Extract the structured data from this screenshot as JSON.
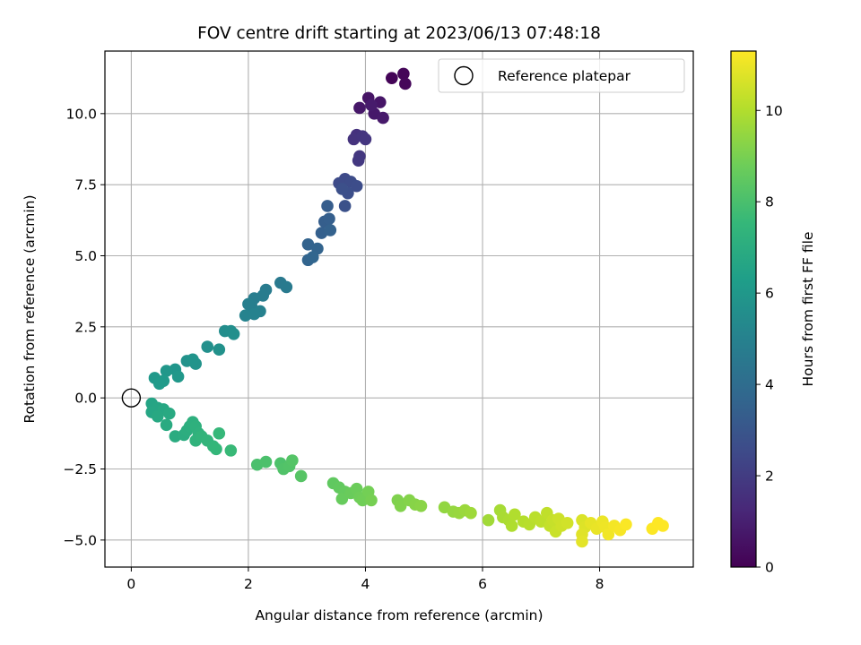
{
  "chart_data": {
    "type": "scatter",
    "title": "FOV centre drift starting at 2023/06/13 07:48:18",
    "xlabel": "Angular distance from reference (arcmin)",
    "ylabel": "Rotation from reference (arcmin)",
    "xlim": [
      -0.45,
      9.6
    ],
    "ylim": [
      -5.95,
      12.2
    ],
    "xticks": [
      0,
      2,
      4,
      6,
      8
    ],
    "xtick_labels": [
      "0",
      "2",
      "4",
      "6",
      "8"
    ],
    "yticks": [
      -5.0,
      -2.5,
      0.0,
      2.5,
      5.0,
      7.5,
      10.0
    ],
    "ytick_labels": [
      "−5.0",
      "−2.5",
      "0.0",
      "2.5",
      "5.0",
      "7.5",
      "10.0"
    ],
    "grid": true,
    "legend": {
      "position": "top-right",
      "entries": [
        "Reference platepar"
      ]
    },
    "reference_point": {
      "label": "Reference platepar",
      "x": 0.0,
      "y": 0.0
    },
    "colorbar": {
      "label": "Hours from first FF file",
      "colormap": "viridis",
      "range": [
        0,
        11.3
      ],
      "ticks": [
        0,
        2,
        4,
        6,
        8,
        10
      ],
      "tick_labels": [
        "0",
        "2",
        "4",
        "6",
        "8",
        "10"
      ]
    },
    "series": [
      {
        "columns": [
          "x",
          "y",
          "hours"
        ],
        "points": [
          [
            4.45,
            11.25,
            0.1
          ],
          [
            4.65,
            11.4,
            0.15
          ],
          [
            4.68,
            11.05,
            0.2
          ],
          [
            4.05,
            10.55,
            0.6
          ],
          [
            4.25,
            10.4,
            0.65
          ],
          [
            3.9,
            10.2,
            0.7
          ],
          [
            4.15,
            10.0,
            0.75
          ],
          [
            4.3,
            9.85,
            0.8
          ],
          [
            4.1,
            10.3,
            0.85
          ],
          [
            3.85,
            9.25,
            1.6
          ],
          [
            3.8,
            9.1,
            1.65
          ],
          [
            3.95,
            9.2,
            1.7
          ],
          [
            4.0,
            9.1,
            1.75
          ],
          [
            3.9,
            8.5,
            1.8
          ],
          [
            3.88,
            8.35,
            1.85
          ],
          [
            3.65,
            7.7,
            2.5
          ],
          [
            3.55,
            7.55,
            2.55
          ],
          [
            3.75,
            7.6,
            2.6
          ],
          [
            3.85,
            7.45,
            2.65
          ],
          [
            3.7,
            7.2,
            2.7
          ],
          [
            3.6,
            7.35,
            2.75
          ],
          [
            3.65,
            6.75,
            2.8
          ],
          [
            3.35,
            6.75,
            3.3
          ],
          [
            3.3,
            6.2,
            3.35
          ],
          [
            3.38,
            6.3,
            3.4
          ],
          [
            3.25,
            5.8,
            3.45
          ],
          [
            3.4,
            5.9,
            3.5
          ],
          [
            3.02,
            5.4,
            3.55
          ],
          [
            3.18,
            5.25,
            3.6
          ],
          [
            3.02,
            4.85,
            3.65
          ],
          [
            3.1,
            4.95,
            3.7
          ],
          [
            2.55,
            4.05,
            4.6
          ],
          [
            2.65,
            3.9,
            4.65
          ],
          [
            2.3,
            3.8,
            4.7
          ],
          [
            2.25,
            3.6,
            4.75
          ],
          [
            2.1,
            3.5,
            4.8
          ],
          [
            2.05,
            3.25,
            4.85
          ],
          [
            2.0,
            3.3,
            4.9
          ],
          [
            2.2,
            3.05,
            4.95
          ],
          [
            2.1,
            2.95,
            5.0
          ],
          [
            1.95,
            2.9,
            5.05
          ],
          [
            1.6,
            2.35,
            5.5
          ],
          [
            1.7,
            2.35,
            5.55
          ],
          [
            1.75,
            2.25,
            5.6
          ],
          [
            1.3,
            1.8,
            5.65
          ],
          [
            1.5,
            1.7,
            5.7
          ],
          [
            0.95,
            1.3,
            5.75
          ],
          [
            1.1,
            1.2,
            5.8
          ],
          [
            1.05,
            1.35,
            5.85
          ],
          [
            0.75,
            1.0,
            5.9
          ],
          [
            0.6,
            0.95,
            5.95
          ],
          [
            0.8,
            0.75,
            6.0
          ],
          [
            0.4,
            0.7,
            6.05
          ],
          [
            0.55,
            0.6,
            6.1
          ],
          [
            0.48,
            0.5,
            6.15
          ],
          [
            0.35,
            -0.2,
            6.6
          ],
          [
            0.45,
            -0.35,
            6.65
          ],
          [
            0.35,
            -0.5,
            6.7
          ],
          [
            0.55,
            -0.4,
            6.75
          ],
          [
            0.45,
            -0.65,
            6.8
          ],
          [
            0.65,
            -0.55,
            6.85
          ],
          [
            0.6,
            -0.95,
            6.9
          ],
          [
            0.75,
            -1.35,
            6.95
          ],
          [
            0.9,
            -1.3,
            7.0
          ],
          [
            0.95,
            -1.15,
            7.05
          ],
          [
            1.0,
            -1.0,
            7.1
          ],
          [
            1.05,
            -0.85,
            7.15
          ],
          [
            1.1,
            -1.0,
            7.2
          ],
          [
            1.15,
            -1.25,
            7.25
          ],
          [
            1.1,
            -1.5,
            7.3
          ],
          [
            1.2,
            -1.35,
            7.35
          ],
          [
            1.3,
            -1.5,
            7.4
          ],
          [
            1.4,
            -1.7,
            7.45
          ],
          [
            1.45,
            -1.8,
            7.5
          ],
          [
            1.5,
            -1.25,
            7.55
          ],
          [
            1.7,
            -1.85,
            7.6
          ],
          [
            2.15,
            -2.35,
            8.0
          ],
          [
            2.3,
            -2.25,
            8.05
          ],
          [
            2.55,
            -2.3,
            8.1
          ],
          [
            2.6,
            -2.5,
            8.15
          ],
          [
            2.7,
            -2.4,
            8.2
          ],
          [
            2.75,
            -2.2,
            8.25
          ],
          [
            2.9,
            -2.75,
            8.3
          ],
          [
            3.45,
            -3.0,
            8.5
          ],
          [
            3.55,
            -3.15,
            8.55
          ],
          [
            3.65,
            -3.3,
            8.6
          ],
          [
            3.6,
            -3.55,
            8.65
          ],
          [
            3.75,
            -3.35,
            8.7
          ],
          [
            3.85,
            -3.2,
            8.75
          ],
          [
            3.9,
            -3.5,
            8.8
          ],
          [
            3.95,
            -3.6,
            8.85
          ],
          [
            4.05,
            -3.3,
            8.9
          ],
          [
            4.1,
            -3.6,
            8.95
          ],
          [
            4.55,
            -3.6,
            9.1
          ],
          [
            4.6,
            -3.8,
            9.15
          ],
          [
            4.75,
            -3.6,
            9.2
          ],
          [
            4.85,
            -3.75,
            9.25
          ],
          [
            4.95,
            -3.8,
            9.3
          ],
          [
            5.35,
            -3.85,
            9.45
          ],
          [
            5.5,
            -4.0,
            9.5
          ],
          [
            5.6,
            -4.05,
            9.55
          ],
          [
            5.7,
            -3.95,
            9.6
          ],
          [
            5.8,
            -4.05,
            9.65
          ],
          [
            6.1,
            -4.3,
            9.7
          ],
          [
            6.3,
            -3.95,
            9.8
          ],
          [
            6.35,
            -4.2,
            9.85
          ],
          [
            6.45,
            -4.3,
            9.9
          ],
          [
            6.5,
            -4.5,
            9.95
          ],
          [
            6.55,
            -4.1,
            10.0
          ],
          [
            6.7,
            -4.35,
            10.05
          ],
          [
            6.8,
            -4.45,
            10.1
          ],
          [
            6.9,
            -4.2,
            10.15
          ],
          [
            7.0,
            -4.35,
            10.2
          ],
          [
            7.1,
            -4.05,
            10.25
          ],
          [
            7.15,
            -4.5,
            10.3
          ],
          [
            7.2,
            -4.3,
            10.35
          ],
          [
            7.25,
            -4.7,
            10.4
          ],
          [
            7.3,
            -4.25,
            10.45
          ],
          [
            7.35,
            -4.5,
            10.5
          ],
          [
            7.45,
            -4.4,
            10.55
          ],
          [
            7.7,
            -4.3,
            10.7
          ],
          [
            7.75,
            -4.55,
            10.75
          ],
          [
            7.7,
            -4.8,
            10.8
          ],
          [
            7.7,
            -5.05,
            10.85
          ],
          [
            7.85,
            -4.4,
            10.9
          ],
          [
            7.95,
            -4.6,
            10.95
          ],
          [
            8.05,
            -4.35,
            11.0
          ],
          [
            8.1,
            -4.55,
            11.05
          ],
          [
            8.15,
            -4.8,
            11.1
          ],
          [
            8.25,
            -4.5,
            11.15
          ],
          [
            8.35,
            -4.65,
            11.2
          ],
          [
            8.45,
            -4.45,
            11.25
          ],
          [
            8.9,
            -4.6,
            11.28
          ],
          [
            9.0,
            -4.4,
            11.3
          ],
          [
            9.08,
            -4.5,
            11.3
          ]
        ]
      }
    ]
  }
}
